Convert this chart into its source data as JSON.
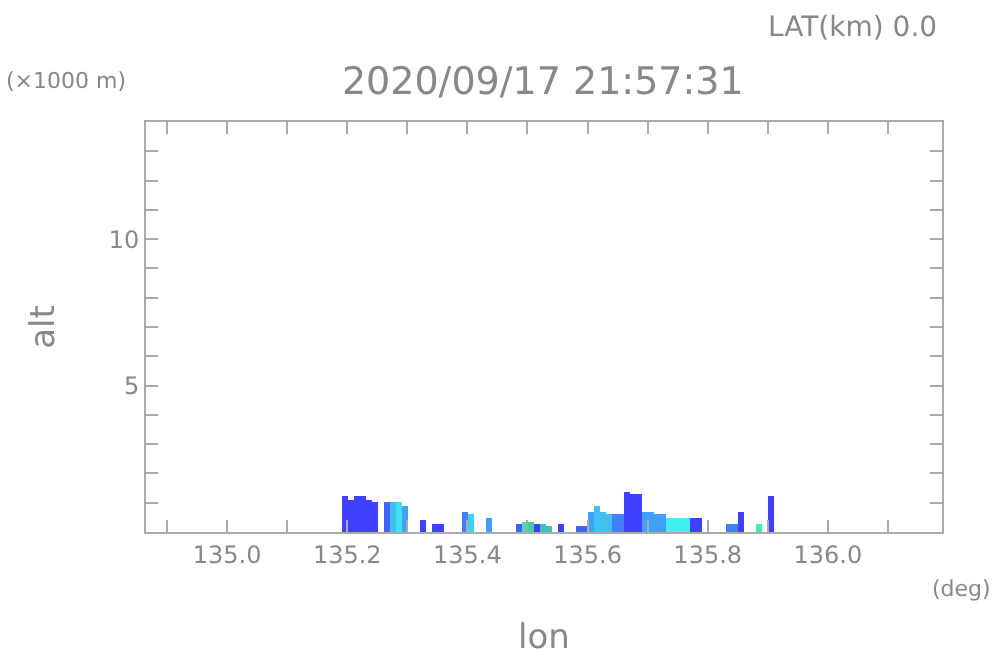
{
  "chart_data": {
    "type": "bar",
    "title": "2020/09/17 21:57:31",
    "xlabel": "lon",
    "ylabel": "alt",
    "annotations": [
      "LAT(km) 0.0",
      "(×1000 m)",
      "(deg)"
    ],
    "x": [
      135.195,
      135.205,
      135.215,
      135.225,
      135.235,
      135.245,
      135.265,
      135.275,
      135.285,
      135.295,
      135.325,
      135.345,
      135.355,
      135.395,
      135.405,
      135.435,
      135.485,
      135.495,
      135.505,
      135.515,
      135.525,
      135.535,
      135.555,
      135.585,
      135.595,
      135.605,
      135.615,
      135.625,
      135.635,
      135.645,
      135.655,
      135.665,
      135.675,
      135.685,
      135.695,
      135.705,
      135.715,
      135.725,
      135.735,
      135.745,
      135.755,
      135.765,
      135.775,
      135.785,
      135.835,
      135.845,
      135.855,
      135.885,
      135.905
    ],
    "values": [
      1.2,
      1.1,
      1.2,
      1.2,
      1.1,
      1.0,
      1.0,
      1.0,
      1.0,
      0.9,
      0.4,
      0.3,
      0.3,
      0.7,
      0.6,
      0.45,
      0.3,
      0.35,
      0.35,
      0.3,
      0.25,
      0.2,
      0.3,
      0.2,
      0.2,
      0.7,
      0.9,
      0.7,
      0.6,
      0.6,
      0.6,
      1.4,
      1.3,
      1.3,
      0.7,
      0.7,
      0.6,
      0.6,
      0.5,
      0.5,
      0.5,
      0.5,
      0.5,
      0.5,
      0.25,
      0.25,
      0.7,
      0.25,
      1.2
    ],
    "colors": [
      "#4040ff",
      "#4040ff",
      "#4040ff",
      "#4040ff",
      "#4040ff",
      "#4040ff",
      "#4060ff",
      "#40c0f0",
      "#40e0f0",
      "#40a0ff",
      "#4040ff",
      "#4040ff",
      "#4040ff",
      "#4080ff",
      "#40d0f0",
      "#40a0ff",
      "#4060ff",
      "#40e0c0",
      "#40d0a0",
      "#4040ff",
      "#40c0c0",
      "#40c0c0",
      "#4040ff",
      "#4060ff",
      "#4060ff",
      "#40a0ff",
      "#40c0f0",
      "#40c0f0",
      "#40c0f0",
      "#4080ff",
      "#4080ff",
      "#4040ff",
      "#4040ff",
      "#4040ff",
      "#40a0ff",
      "#40a0ff",
      "#40a0ff",
      "#40a0ff",
      "#40f0f0",
      "#40f0f0",
      "#40f0f0",
      "#40f0f0",
      "#4040ff",
      "#4040ff",
      "#4080ff",
      "#4080ff",
      "#4040ff",
      "#40f0a0",
      "#4040ff"
    ],
    "xlim": [
      134.865,
      136.19
    ],
    "ylim": [
      0,
      14
    ],
    "xticks": [
      {
        "value": 134.9,
        "label": null
      },
      {
        "value": 135.0,
        "label": "135.0"
      },
      {
        "value": 135.1,
        "label": null
      },
      {
        "value": 135.2,
        "label": "135.2"
      },
      {
        "value": 135.3,
        "label": null
      },
      {
        "value": 135.4,
        "label": "135.4"
      },
      {
        "value": 135.5,
        "label": null
      },
      {
        "value": 135.6,
        "label": "135.6"
      },
      {
        "value": 135.7,
        "label": null
      },
      {
        "value": 135.8,
        "label": "135.8"
      },
      {
        "value": 135.9,
        "label": null
      },
      {
        "value": 136.0,
        "label": "136.0"
      },
      {
        "value": 136.1,
        "label": null
      }
    ],
    "yticks": [
      {
        "value": 1,
        "label": null
      },
      {
        "value": 2,
        "label": null
      },
      {
        "value": 3,
        "label": null
      },
      {
        "value": 4,
        "label": null
      },
      5,
      {
        "value": 6,
        "label": null
      },
      {
        "value": 7,
        "label": null
      },
      {
        "value": 8,
        "label": null
      },
      {
        "value": 9,
        "label": null
      },
      10,
      {
        "value": 11,
        "label": null
      },
      {
        "value": 12,
        "label": null
      },
      {
        "value": 13,
        "label": null
      }
    ]
  }
}
